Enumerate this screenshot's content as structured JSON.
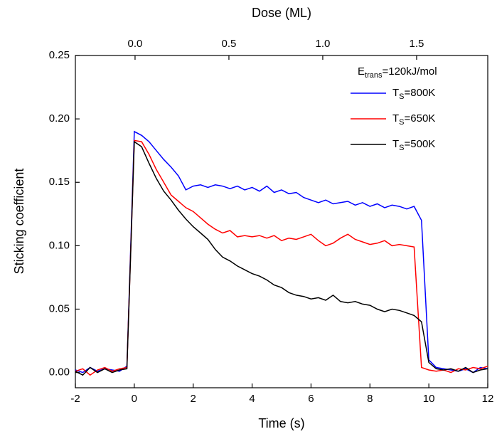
{
  "chart_data": {
    "type": "line",
    "x_label": "Time (s)",
    "y_label": "Sticking coefficient",
    "x2_label": "Dose (ML)",
    "legend_title": "Etrans=120kJ/mol",
    "legend": "upper right",
    "x": [
      -2,
      -1.75,
      -1.5,
      -1.25,
      -1,
      -0.75,
      -0.5,
      -0.25,
      0,
      0.25,
      0.5,
      0.75,
      1,
      1.25,
      1.5,
      1.75,
      2,
      2.25,
      2.5,
      2.75,
      3,
      3.25,
      3.5,
      3.75,
      4,
      4.25,
      4.5,
      4.75,
      5,
      5.25,
      5.5,
      5.75,
      6,
      6.25,
      6.5,
      6.75,
      7,
      7.25,
      7.5,
      7.75,
      8,
      8.25,
      8.5,
      8.75,
      9,
      9.25,
      9.5,
      9.75,
      10,
      10.25,
      10.5,
      10.75,
      11,
      11.25,
      11.5,
      11.75,
      12
    ],
    "series": [
      {
        "name": "TS=800K",
        "color": "#0000ff",
        "values": [
          0.002,
          0.0,
          0.004,
          0.001,
          0.003,
          0.002,
          0.001,
          0.005,
          0.19,
          0.187,
          0.182,
          0.175,
          0.168,
          0.162,
          0.155,
          0.144,
          0.147,
          0.148,
          0.146,
          0.148,
          0.147,
          0.145,
          0.147,
          0.144,
          0.146,
          0.143,
          0.147,
          0.142,
          0.144,
          0.141,
          0.142,
          0.138,
          0.136,
          0.134,
          0.136,
          0.133,
          0.134,
          0.135,
          0.132,
          0.134,
          0.131,
          0.133,
          0.13,
          0.132,
          0.131,
          0.129,
          0.131,
          0.12,
          0.01,
          0.004,
          0.003,
          0.002,
          0.001,
          0.003,
          0.0,
          0.004,
          0.003
        ]
      },
      {
        "name": "TS=650K",
        "color": "#ff0000",
        "values": [
          0.001,
          0.003,
          -0.002,
          0.002,
          0.004,
          0.001,
          0.003,
          0.004,
          0.183,
          0.182,
          0.172,
          0.16,
          0.15,
          0.14,
          0.135,
          0.13,
          0.127,
          0.122,
          0.117,
          0.113,
          0.11,
          0.112,
          0.107,
          0.108,
          0.107,
          0.108,
          0.106,
          0.108,
          0.104,
          0.106,
          0.105,
          0.107,
          0.109,
          0.104,
          0.1,
          0.102,
          0.106,
          0.109,
          0.105,
          0.103,
          0.101,
          0.102,
          0.104,
          0.1,
          0.101,
          0.1,
          0.099,
          0.004,
          0.002,
          0.001,
          0.002,
          0.0,
          0.003,
          0.002,
          0.004,
          0.003,
          0.005
        ]
      },
      {
        "name": "TS=500K",
        "color": "#000000",
        "values": [
          0.001,
          -0.002,
          0.004,
          0.0,
          0.003,
          0.0,
          0.002,
          0.003,
          0.182,
          0.178,
          0.165,
          0.153,
          0.143,
          0.136,
          0.128,
          0.121,
          0.115,
          0.11,
          0.105,
          0.097,
          0.091,
          0.088,
          0.084,
          0.081,
          0.078,
          0.076,
          0.073,
          0.069,
          0.067,
          0.063,
          0.061,
          0.06,
          0.058,
          0.059,
          0.057,
          0.061,
          0.056,
          0.055,
          0.056,
          0.054,
          0.053,
          0.05,
          0.048,
          0.05,
          0.049,
          0.047,
          0.045,
          0.04,
          0.008,
          0.003,
          0.002,
          0.003,
          0.001,
          0.004,
          0.0,
          0.002,
          0.003
        ]
      }
    ],
    "xlim": [
      -2,
      12
    ],
    "xticks": [
      -2,
      0,
      2,
      4,
      6,
      8,
      10,
      12
    ],
    "ylim": [
      -0.012,
      0.25
    ],
    "yticks": [
      {
        "value": 0,
        "label": "0.00"
      },
      {
        "value": 0.05,
        "label": "0.05"
      },
      {
        "value": 0.1,
        "label": "0.10"
      },
      {
        "value": 0.15,
        "label": "0.15"
      },
      {
        "value": 0.2,
        "label": "0.20"
      },
      {
        "value": 0.25,
        "label": "0.25"
      }
    ],
    "x2lim": [
      -0.318,
      1.879
    ],
    "x2ticks": [
      {
        "value": 0,
        "label": "0.0"
      },
      {
        "value": 0.5,
        "label": "0.5"
      },
      {
        "value": 1,
        "label": "1.0"
      },
      {
        "value": 1.5,
        "label": "1.5"
      }
    ]
  }
}
